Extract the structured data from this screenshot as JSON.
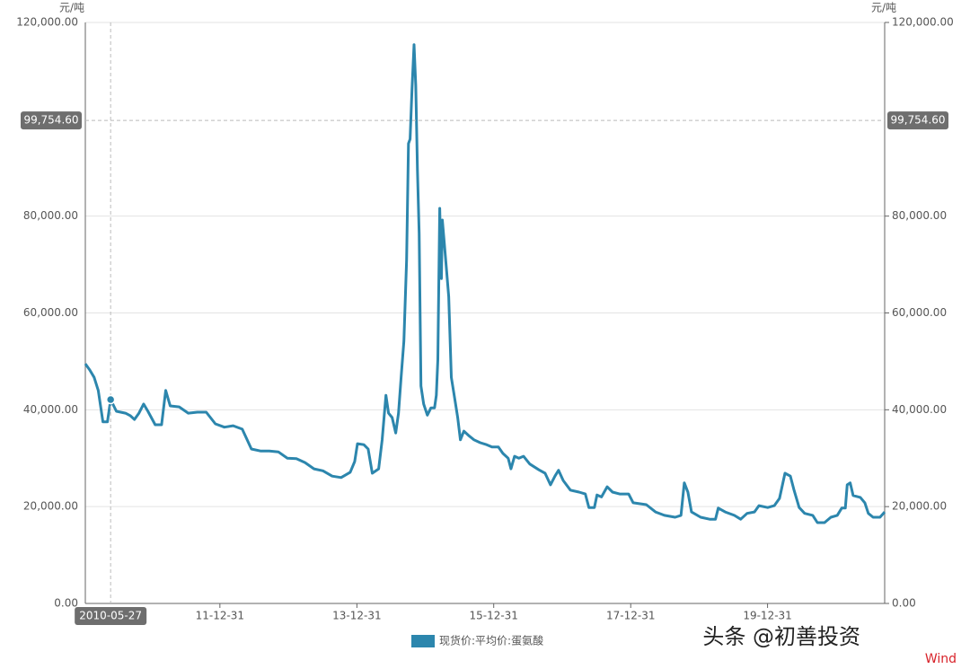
{
  "chart_data": {
    "type": "line",
    "y_unit": "元/吨",
    "y2_unit": "元/吨",
    "xlim": [
      "2010-01-12",
      "2021-09-16"
    ],
    "xticks": [
      {
        "value": "2011-12-31",
        "label": "11-12-31"
      },
      {
        "value": "2013-12-31",
        "label": "13-12-31"
      },
      {
        "value": "2015-12-31",
        "label": "15-12-31"
      },
      {
        "value": "2017-12-31",
        "label": "17-12-31"
      },
      {
        "value": "2019-12-31",
        "label": "19-12-31"
      }
    ],
    "ylim": [
      0,
      120000
    ],
    "yticks": [
      {
        "value": 0,
        "label": "0.00"
      },
      {
        "value": 20000,
        "label": "20,000.00"
      },
      {
        "value": 40000,
        "label": "40,000.00"
      },
      {
        "value": 60000,
        "label": "60,000.00"
      },
      {
        "value": 80000,
        "label": "80,000.00"
      },
      {
        "value": 120000,
        "label": "120,000.00"
      }
    ],
    "y2lim": [
      0,
      120000
    ],
    "y2ticks": [
      {
        "value": 0,
        "label": "0.00"
      },
      {
        "value": 20000,
        "label": "20,000.00"
      },
      {
        "value": 40000,
        "label": "40,000.00"
      },
      {
        "value": 60000,
        "label": "60,000.00"
      },
      {
        "value": 80000,
        "label": "80,000.00"
      },
      {
        "value": 120000,
        "label": "120,000.00"
      }
    ],
    "grid": true,
    "legend": "bottom",
    "cursor": {
      "x": "2010-05-27",
      "y": {
        "value": 99754.6,
        "label": "99,754.60"
      }
    },
    "x": [
      "2010-01-12",
      "2010-02-05",
      "2010-02-28",
      "2010-03-22",
      "2010-04-16",
      "2010-05-10",
      "2010-05-27",
      "2010-06-27",
      "2010-08-14",
      "2010-09-08",
      "2010-10-01",
      "2010-10-25",
      "2010-11-19",
      "2010-12-12",
      "2011-01-20",
      "2011-02-23",
      "2011-03-17",
      "2011-04-10",
      "2011-05-28",
      "2011-07-15",
      "2011-09-02",
      "2011-10-19",
      "2011-12-07",
      "2012-01-24",
      "2012-03-11",
      "2012-04-28",
      "2012-06-16",
      "2012-08-03",
      "2012-09-20",
      "2012-11-07",
      "2012-12-25",
      "2013-02-11",
      "2013-03-29",
      "2013-05-16",
      "2013-07-03",
      "2013-08-21",
      "2013-10-08",
      "2013-11-25",
      "2013-12-19",
      "2014-01-03",
      "2014-02-06",
      "2014-03-01",
      "2014-03-23",
      "2014-04-26",
      "2014-05-15",
      "2014-06-04",
      "2014-06-18",
      "2014-07-07",
      "2014-07-26",
      "2014-08-10",
      "2014-08-24",
      "2014-09-08",
      "2014-09-22",
      "2014-10-02",
      "2014-10-11",
      "2014-10-21",
      "2014-11-01",
      "2014-11-10",
      "2014-11-19",
      "2014-11-28",
      "2014-12-08",
      "2014-12-22",
      "2015-01-11",
      "2015-01-30",
      "2015-02-18",
      "2015-02-28",
      "2015-03-08",
      "2015-03-18",
      "2015-03-27",
      "2015-04-01",
      "2015-04-11",
      "2015-04-25",
      "2015-05-05",
      "2015-05-19",
      "2015-06-03",
      "2015-06-22",
      "2015-07-06",
      "2015-07-25",
      "2015-08-19",
      "2015-09-17",
      "2015-10-20",
      "2015-11-23",
      "2015-12-22",
      "2016-01-25",
      "2016-02-18",
      "2016-03-17",
      "2016-04-01",
      "2016-04-20",
      "2016-05-13",
      "2016-06-07",
      "2016-07-10",
      "2016-08-28",
      "2016-09-30",
      "2016-10-29",
      "2016-11-22",
      "2016-12-11",
      "2017-01-05",
      "2017-02-12",
      "2017-03-30",
      "2017-05-03",
      "2017-05-22",
      "2017-06-20",
      "2017-07-04",
      "2017-07-28",
      "2017-08-27",
      "2017-09-25",
      "2017-11-02",
      "2017-12-20",
      "2018-01-13",
      "2018-03-24",
      "2018-05-12",
      "2018-06-29",
      "2018-08-25",
      "2018-09-25",
      "2018-10-13",
      "2018-11-01",
      "2018-11-20",
      "2019-01-08",
      "2019-02-25",
      "2019-03-28",
      "2019-04-12",
      "2019-05-19",
      "2019-07-07",
      "2019-08-10",
      "2019-09-13",
      "2019-10-22",
      "2019-11-15",
      "2020-01-01",
      "2020-02-05",
      "2020-03-04",
      "2020-04-02",
      "2020-05-01",
      "2020-05-19",
      "2020-06-17",
      "2020-07-16",
      "2020-08-28",
      "2020-09-22",
      "2020-10-30",
      "2020-12-03",
      "2021-01-06",
      "2021-01-30",
      "2021-02-18",
      "2021-02-28",
      "2021-03-16",
      "2021-04-01",
      "2021-05-09",
      "2021-06-02",
      "2021-06-21",
      "2021-07-16",
      "2021-08-22",
      "2021-09-16"
    ],
    "series": [
      {
        "name": "现货价:平均价:蛋氨酸",
        "color": "#2c86ad",
        "values": [
          49500,
          48200,
          46700,
          44000,
          37500,
          37500,
          42100,
          39700,
          39300,
          38800,
          38000,
          39300,
          41200,
          39700,
          36900,
          36900,
          44000,
          40800,
          40600,
          39300,
          39500,
          39500,
          37100,
          36400,
          36700,
          36000,
          31900,
          31500,
          31500,
          31300,
          30000,
          29900,
          29100,
          27800,
          27400,
          26300,
          26000,
          27100,
          29300,
          33000,
          32800,
          31900,
          26900,
          27800,
          33800,
          43000,
          39300,
          38400,
          35200,
          39300,
          46700,
          54200,
          70900,
          95000,
          95900,
          106100,
          115400,
          107000,
          89400,
          76400,
          44900,
          41200,
          38900,
          40400,
          40400,
          43000,
          50400,
          81600,
          67100,
          79200,
          74600,
          68100,
          63400,
          46700,
          43000,
          38400,
          33800,
          35600,
          34700,
          33800,
          33200,
          32800,
          32300,
          32300,
          31000,
          30000,
          27800,
          30400,
          30000,
          30400,
          28800,
          27600,
          26900,
          24500,
          26300,
          27500,
          25400,
          23400,
          23000,
          22600,
          19800,
          19800,
          22400,
          22000,
          24100,
          23000,
          22600,
          22600,
          20800,
          20400,
          18900,
          18200,
          17800,
          18200,
          24900,
          23000,
          18900,
          17800,
          17400,
          17400,
          19700,
          18900,
          18200,
          17400,
          18600,
          18900,
          20200,
          19800,
          20200,
          21700,
          26900,
          26300,
          23600,
          19800,
          18600,
          18200,
          16700,
          16700,
          17800,
          18200,
          19700,
          19700,
          24500,
          24900,
          22300,
          21900,
          20800,
          18600,
          17800,
          17800,
          18900
        ]
      }
    ],
    "watermark": "头条 @初善投资",
    "source": "Wind"
  }
}
